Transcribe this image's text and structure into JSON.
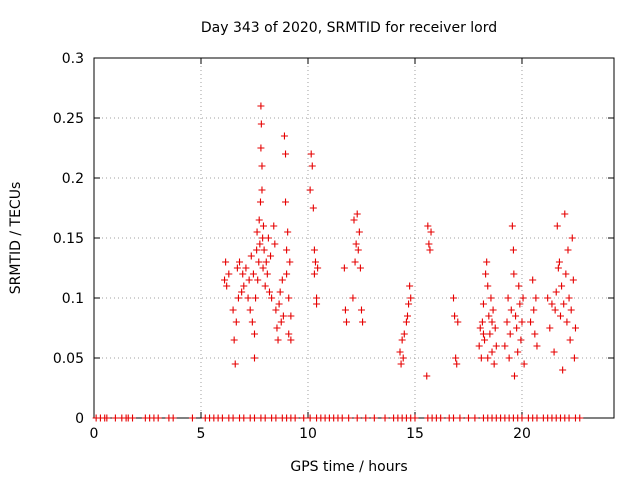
{
  "chart_data": {
    "type": "scatter",
    "title": "Day 343 of 2020, SRMTID for receiver lord",
    "xlabel": "GPS time / hours",
    "ylabel": "SRMTID / TECUs",
    "xlim": [
      0,
      24.3
    ],
    "ylim": [
      0,
      0.3
    ],
    "x_ticks": [
      0,
      5,
      10,
      15,
      20
    ],
    "x_tick_labels": [
      "0",
      "5",
      "10",
      "15",
      "20"
    ],
    "y_ticks": [
      0,
      0.05,
      0.1,
      0.15,
      0.2,
      0.25,
      0.3
    ],
    "y_tick_labels": [
      "0",
      "0.05",
      "0.1",
      "0.15",
      "0.2",
      "0.25",
      "0.3"
    ],
    "grid": true,
    "marker": "plus",
    "color": "#e60000",
    "series": [
      {
        "name": "SRMTID",
        "points": [
          [
            0.1,
            0
          ],
          [
            0.3,
            0
          ],
          [
            0.5,
            0
          ],
          [
            0.6,
            0
          ],
          [
            1.0,
            0
          ],
          [
            1.3,
            0
          ],
          [
            1.5,
            0
          ],
          [
            1.6,
            0
          ],
          [
            1.8,
            0
          ],
          [
            2.4,
            0
          ],
          [
            2.6,
            0
          ],
          [
            2.8,
            0
          ],
          [
            3.0,
            0
          ],
          [
            3.5,
            0
          ],
          [
            3.7,
            0
          ],
          [
            4.6,
            0
          ],
          [
            5.2,
            0
          ],
          [
            5.4,
            0
          ],
          [
            5.6,
            0
          ],
          [
            5.8,
            0
          ],
          [
            6.0,
            0
          ],
          [
            6.3,
            0
          ],
          [
            6.5,
            0
          ],
          [
            6.8,
            0
          ],
          [
            7.0,
            0
          ],
          [
            7.3,
            0
          ],
          [
            7.5,
            0
          ],
          [
            7.8,
            0
          ],
          [
            8.0,
            0
          ],
          [
            8.3,
            0
          ],
          [
            8.5,
            0
          ],
          [
            8.8,
            0
          ],
          [
            9.0,
            0
          ],
          [
            9.2,
            0
          ],
          [
            9.4,
            0
          ],
          [
            9.8,
            0
          ],
          [
            10.1,
            0
          ],
          [
            10.4,
            0
          ],
          [
            10.6,
            0
          ],
          [
            10.8,
            0
          ],
          [
            11.0,
            0
          ],
          [
            11.2,
            0
          ],
          [
            11.4,
            0
          ],
          [
            11.6,
            0
          ],
          [
            11.9,
            0
          ],
          [
            12.3,
            0
          ],
          [
            12.7,
            0
          ],
          [
            13.1,
            0
          ],
          [
            13.6,
            0
          ],
          [
            14.0,
            0
          ],
          [
            14.2,
            0
          ],
          [
            14.4,
            0
          ],
          [
            14.6,
            0
          ],
          [
            14.8,
            0
          ],
          [
            15.0,
            0
          ],
          [
            15.6,
            0
          ],
          [
            15.8,
            0
          ],
          [
            16.0,
            0
          ],
          [
            16.2,
            0
          ],
          [
            16.6,
            0
          ],
          [
            16.8,
            0
          ],
          [
            17.1,
            0
          ],
          [
            17.5,
            0
          ],
          [
            17.8,
            0
          ],
          [
            18.2,
            0
          ],
          [
            18.4,
            0
          ],
          [
            18.6,
            0
          ],
          [
            18.8,
            0
          ],
          [
            19.0,
            0
          ],
          [
            19.2,
            0
          ],
          [
            19.4,
            0
          ],
          [
            19.6,
            0
          ],
          [
            19.8,
            0
          ],
          [
            20.0,
            0
          ],
          [
            20.3,
            0
          ],
          [
            20.5,
            0
          ],
          [
            20.7,
            0
          ],
          [
            21.0,
            0
          ],
          [
            21.2,
            0
          ],
          [
            21.4,
            0
          ],
          [
            21.6,
            0
          ],
          [
            21.8,
            0
          ],
          [
            22.0,
            0
          ],
          [
            22.2,
            0
          ],
          [
            22.5,
            0
          ],
          [
            22.7,
            0
          ],
          [
            6.1,
            0.115
          ],
          [
            6.15,
            0.13
          ],
          [
            6.2,
            0.11
          ],
          [
            6.3,
            0.12
          ],
          [
            6.5,
            0.09
          ],
          [
            6.55,
            0.065
          ],
          [
            6.6,
            0.045
          ],
          [
            6.65,
            0.08
          ],
          [
            6.7,
            0.125
          ],
          [
            6.75,
            0.1
          ],
          [
            6.8,
            0.13
          ],
          [
            6.9,
            0.105
          ],
          [
            6.95,
            0.12
          ],
          [
            7.0,
            0.11
          ],
          [
            7.1,
            0.125
          ],
          [
            7.2,
            0.1
          ],
          [
            7.25,
            0.115
          ],
          [
            7.3,
            0.09
          ],
          [
            7.35,
            0.135
          ],
          [
            7.4,
            0.08
          ],
          [
            7.45,
            0.12
          ],
          [
            7.5,
            0.05
          ],
          [
            7.5,
            0.07
          ],
          [
            7.55,
            0.1
          ],
          [
            7.6,
            0.14
          ],
          [
            7.62,
            0.155
          ],
          [
            7.65,
            0.115
          ],
          [
            7.7,
            0.13
          ],
          [
            7.72,
            0.165
          ],
          [
            7.75,
            0.145
          ],
          [
            7.78,
            0.18
          ],
          [
            7.8,
            0.26
          ],
          [
            7.8,
            0.225
          ],
          [
            7.82,
            0.245
          ],
          [
            7.85,
            0.21
          ],
          [
            7.85,
            0.19
          ],
          [
            7.88,
            0.15
          ],
          [
            7.9,
            0.125
          ],
          [
            7.92,
            0.16
          ],
          [
            7.95,
            0.14
          ],
          [
            8.0,
            0.11
          ],
          [
            8.05,
            0.13
          ],
          [
            8.1,
            0.12
          ],
          [
            8.15,
            0.15
          ],
          [
            8.2,
            0.105
          ],
          [
            8.25,
            0.135
          ],
          [
            8.3,
            0.1
          ],
          [
            8.4,
            0.16
          ],
          [
            8.45,
            0.145
          ],
          [
            8.5,
            0.09
          ],
          [
            8.55,
            0.075
          ],
          [
            8.6,
            0.065
          ],
          [
            8.65,
            0.095
          ],
          [
            8.7,
            0.105
          ],
          [
            8.75,
            0.08
          ],
          [
            8.8,
            0.115
          ],
          [
            8.85,
            0.085
          ],
          [
            8.9,
            0.235
          ],
          [
            8.95,
            0.18
          ],
          [
            8.95,
            0.22
          ],
          [
            9.0,
            0.12
          ],
          [
            9.0,
            0.14
          ],
          [
            9.05,
            0.155
          ],
          [
            9.1,
            0.1
          ],
          [
            9.1,
            0.07
          ],
          [
            9.15,
            0.13
          ],
          [
            9.2,
            0.065
          ],
          [
            9.2,
            0.085
          ],
          [
            10.1,
            0.19
          ],
          [
            10.15,
            0.22
          ],
          [
            10.2,
            0.21
          ],
          [
            10.25,
            0.175
          ],
          [
            10.3,
            0.14
          ],
          [
            10.3,
            0.12
          ],
          [
            10.35,
            0.13
          ],
          [
            10.4,
            0.1
          ],
          [
            10.4,
            0.095
          ],
          [
            10.45,
            0.125
          ],
          [
            11.7,
            0.125
          ],
          [
            11.75,
            0.09
          ],
          [
            11.8,
            0.08
          ],
          [
            12.1,
            0.1
          ],
          [
            12.15,
            0.165
          ],
          [
            12.2,
            0.13
          ],
          [
            12.25,
            0.145
          ],
          [
            12.3,
            0.17
          ],
          [
            12.35,
            0.14
          ],
          [
            12.4,
            0.155
          ],
          [
            12.45,
            0.125
          ],
          [
            12.5,
            0.09
          ],
          [
            12.55,
            0.08
          ],
          [
            14.3,
            0.055
          ],
          [
            14.35,
            0.045
          ],
          [
            14.4,
            0.065
          ],
          [
            14.45,
            0.05
          ],
          [
            14.5,
            0.07
          ],
          [
            14.6,
            0.08
          ],
          [
            14.65,
            0.085
          ],
          [
            14.7,
            0.095
          ],
          [
            14.75,
            0.11
          ],
          [
            14.8,
            0.1
          ],
          [
            15.6,
            0.16
          ],
          [
            15.65,
            0.145
          ],
          [
            15.7,
            0.14
          ],
          [
            15.75,
            0.155
          ],
          [
            15.55,
            0.035
          ],
          [
            16.8,
            0.1
          ],
          [
            16.85,
            0.085
          ],
          [
            16.9,
            0.05
          ],
          [
            16.95,
            0.045
          ],
          [
            17.0,
            0.08
          ],
          [
            18.0,
            0.06
          ],
          [
            18.05,
            0.075
          ],
          [
            18.1,
            0.05
          ],
          [
            18.15,
            0.08
          ],
          [
            18.2,
            0.095
          ],
          [
            18.25,
            0.065
          ],
          [
            18.3,
            0.12
          ],
          [
            18.35,
            0.13
          ],
          [
            18.4,
            0.11
          ],
          [
            18.45,
            0.085
          ],
          [
            18.5,
            0.07
          ],
          [
            18.55,
            0.1
          ],
          [
            18.6,
            0.055
          ],
          [
            18.65,
            0.09
          ],
          [
            18.7,
            0.045
          ],
          [
            18.75,
            0.075
          ],
          [
            18.8,
            0.06
          ],
          [
            18.2,
            0.07
          ],
          [
            18.4,
            0.05
          ],
          [
            18.6,
            0.08
          ],
          [
            19.2,
            0.06
          ],
          [
            19.3,
            0.08
          ],
          [
            19.35,
            0.1
          ],
          [
            19.4,
            0.05
          ],
          [
            19.45,
            0.07
          ],
          [
            19.5,
            0.09
          ],
          [
            19.55,
            0.16
          ],
          [
            19.6,
            0.14
          ],
          [
            19.62,
            0.12
          ],
          [
            19.65,
            0.035
          ],
          [
            19.7,
            0.085
          ],
          [
            19.75,
            0.075
          ],
          [
            19.8,
            0.055
          ],
          [
            19.85,
            0.11
          ],
          [
            19.9,
            0.095
          ],
          [
            19.95,
            0.065
          ],
          [
            20.0,
            0.08
          ],
          [
            20.05,
            0.1
          ],
          [
            20.1,
            0.045
          ],
          [
            20.4,
            0.08
          ],
          [
            20.5,
            0.115
          ],
          [
            20.55,
            0.09
          ],
          [
            20.6,
            0.07
          ],
          [
            20.65,
            0.1
          ],
          [
            20.7,
            0.06
          ],
          [
            21.2,
            0.1
          ],
          [
            21.3,
            0.075
          ],
          [
            21.4,
            0.095
          ],
          [
            21.5,
            0.055
          ],
          [
            21.55,
            0.09
          ],
          [
            21.6,
            0.105
          ],
          [
            21.65,
            0.16
          ],
          [
            21.7,
            0.125
          ],
          [
            21.75,
            0.13
          ],
          [
            21.8,
            0.085
          ],
          [
            21.85,
            0.11
          ],
          [
            21.9,
            0.04
          ],
          [
            21.95,
            0.095
          ],
          [
            22.0,
            0.17
          ],
          [
            22.05,
            0.12
          ],
          [
            22.1,
            0.08
          ],
          [
            22.15,
            0.14
          ],
          [
            22.2,
            0.1
          ],
          [
            22.25,
            0.065
          ],
          [
            22.3,
            0.09
          ],
          [
            22.35,
            0.15
          ],
          [
            22.4,
            0.115
          ],
          [
            22.45,
            0.05
          ],
          [
            22.5,
            0.075
          ]
        ]
      }
    ]
  }
}
